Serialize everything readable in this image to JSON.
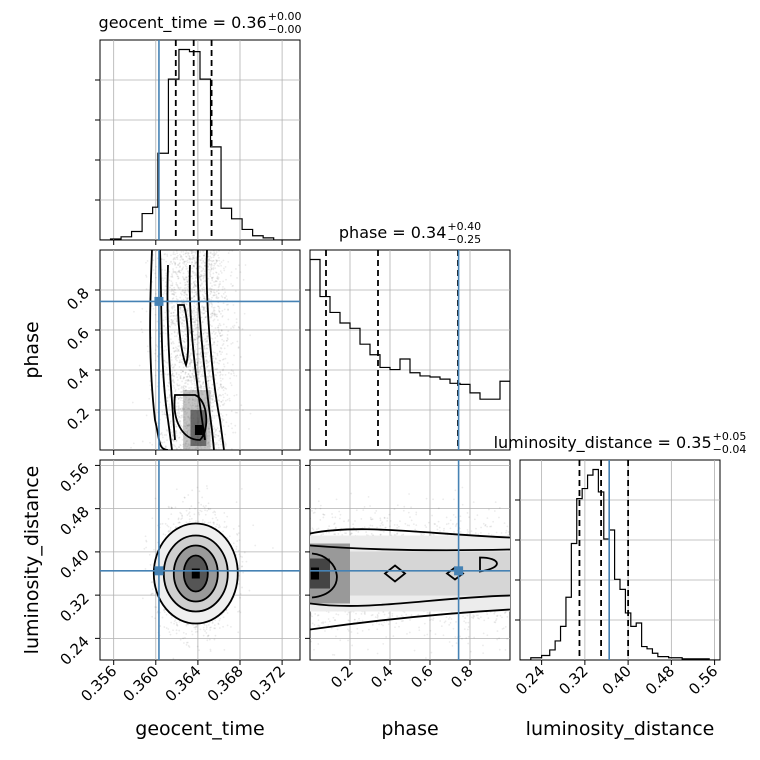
{
  "chart_data": {
    "type": "corner",
    "parameters": [
      "geocent_time",
      "phase",
      "luminosity_distance"
    ],
    "truths": {
      "geocent_time": 0.3603,
      "phase": 0.743,
      "luminosity_distance": 0.365
    },
    "truth_color": "#4682b4",
    "titles": [
      {
        "param": "geocent_time",
        "text": "geocent_time = 0.36",
        "sup": "+0.00",
        "sub": "−0.00"
      },
      {
        "param": "phase",
        "text": "phase = 0.34",
        "sup": "+0.40",
        "sub": "−0.25"
      },
      {
        "param": "luminosity_distance",
        "text": "luminosity_distance = 0.35",
        "sup": "+0.05",
        "sub": "−0.04"
      }
    ],
    "axes": {
      "geocent_time": {
        "range": [
          0.3547,
          0.3737
        ],
        "ticks": [
          0.356,
          0.36,
          0.364,
          0.368,
          0.372
        ],
        "tick_labels": [
          "0.356",
          "0.360",
          "0.364",
          "0.368",
          "0.372"
        ],
        "xlabel": "geocent_time"
      },
      "phase": {
        "range": [
          0.0,
          1.0
        ],
        "ticks": [
          0.2,
          0.4,
          0.6,
          0.8
        ],
        "tick_labels": [
          "0.2",
          "0.4",
          "0.6",
          "0.8"
        ],
        "xlabel": "phase",
        "ylabel": "phase"
      },
      "luminosity_distance": {
        "range": [
          0.2,
          0.57
        ],
        "ticks": [
          0.24,
          0.32,
          0.4,
          0.48,
          0.56
        ],
        "tick_labels": [
          "0.24",
          "0.32",
          "0.40",
          "0.48",
          "0.56"
        ],
        "xlabel": "luminosity_distance",
        "ylabel": "luminosity_distance"
      }
    },
    "histograms": {
      "geocent_time": {
        "quantiles": [
          0.3619,
          0.3636,
          0.3653
        ],
        "edges": [
          0.3547,
          0.3557,
          0.3567,
          0.3577,
          0.3587,
          0.3597,
          0.3602,
          0.3607,
          0.3612,
          0.3617,
          0.3622,
          0.3627,
          0.3632,
          0.3637,
          0.3642,
          0.3647,
          0.3652,
          0.3657,
          0.3662,
          0.3672,
          0.3682,
          0.3692,
          0.3702,
          0.3712,
          0.3737
        ],
        "counts": [
          0,
          1,
          3,
          8,
          25,
          31,
          82,
          82,
          152,
          152,
          180,
          180,
          178,
          178,
          152,
          152,
          88,
          88,
          30,
          20,
          10,
          4,
          2,
          0
        ]
      },
      "phase": {
        "quantiles": [
          0.08,
          0.34,
          0.74
        ],
        "edges": [
          0.0,
          0.05,
          0.1,
          0.15,
          0.2,
          0.25,
          0.3,
          0.35,
          0.4,
          0.45,
          0.5,
          0.55,
          0.6,
          0.65,
          0.7,
          0.75,
          0.8,
          0.85,
          0.9,
          0.95,
          1.0
        ],
        "counts": [
          180,
          145,
          130,
          120,
          115,
          100,
          90,
          78,
          76,
          86,
          73,
          70,
          69,
          67,
          63,
          62,
          54,
          48,
          48,
          65
        ]
      },
      "luminosity_distance": {
        "quantiles": [
          0.31,
          0.35,
          0.4
        ],
        "edges": [
          0.2,
          0.22,
          0.24,
          0.255,
          0.265,
          0.275,
          0.285,
          0.295,
          0.305,
          0.315,
          0.325,
          0.335,
          0.345,
          0.355,
          0.365,
          0.375,
          0.385,
          0.395,
          0.405,
          0.415,
          0.425,
          0.435,
          0.445,
          0.455,
          0.465,
          0.475,
          0.485,
          0.5,
          0.52,
          0.55,
          0.57
        ],
        "counts": [
          0,
          2,
          4,
          9,
          17,
          30,
          56,
          104,
          144,
          153,
          165,
          170,
          150,
          108,
          116,
          72,
          63,
          42,
          30,
          33,
          12,
          10,
          6,
          3,
          3,
          2,
          2,
          1,
          1,
          0
        ]
      }
    },
    "contours_2d": [
      {
        "x": "geocent_time",
        "y": "phase",
        "outer": [
          0.3601,
          0.3606
        ],
        "inner_lower": 0.3609,
        "inner_upper": 0.3633,
        "peak": [
          0.3641,
          0.1
        ]
      },
      {
        "x": "geocent_time",
        "y": "luminosity_distance",
        "center": [
          0.3638,
          0.36
        ]
      },
      {
        "x": "phase",
        "y": "luminosity_distance",
        "center_y": 0.36
      }
    ]
  }
}
